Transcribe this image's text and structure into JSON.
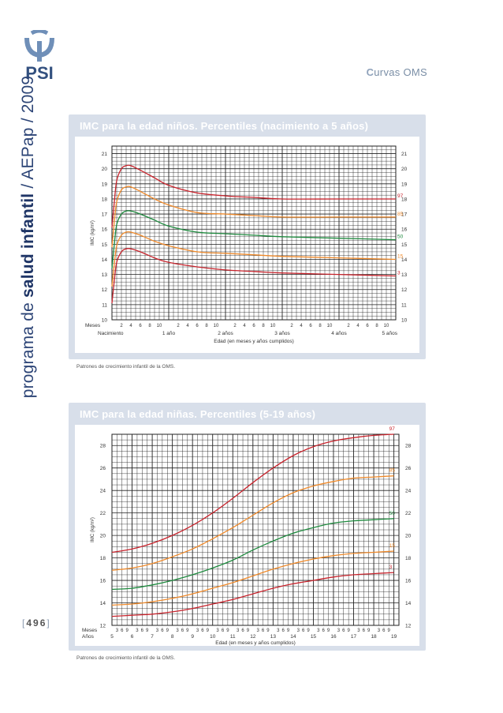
{
  "header": {
    "section_title_first": "C",
    "section_title_rest": "urvas OMS",
    "logo_text": "PSI"
  },
  "brand": {
    "part1": "programa de ",
    "part2": "salud ",
    "part3": "infantil",
    "part4": " / AEPap / 2009"
  },
  "page_number": {
    "open": "[",
    "value": "496",
    "close": "]"
  },
  "colors": {
    "panel_bg": "#d8dfea",
    "p97": "#c8232c",
    "p85": "#f08a2a",
    "p50": "#1e8a3e",
    "p15": "#f08a2a",
    "p3": "#c8232c",
    "grid": "#222222"
  },
  "chart_data": [
    {
      "type": "line",
      "title": "IMC para la edad niños. Percentiles (nacimiento a 5 años)",
      "ylabel": "IMC (kg/m²)",
      "xlabel": "Edad (en meses y años cumplidos)",
      "months_label": "Meses",
      "source": "Patrones de crecimiento infantil de la OMS.",
      "ylim": [
        10,
        21.5
      ],
      "xlim": [
        0,
        60
      ],
      "yticks": [
        "10",
        "11",
        "12",
        "13",
        "14",
        "15",
        "16",
        "17",
        "18",
        "19",
        "20",
        "21"
      ],
      "month_ticks": [
        "2",
        "4",
        "6",
        "8",
        "10",
        "2",
        "4",
        "6",
        "8",
        "10",
        "2",
        "4",
        "6",
        "8",
        "10",
        "2",
        "4",
        "6",
        "8",
        "10",
        "2",
        "4",
        "6",
        "8",
        "10"
      ],
      "year_labels": [
        "Nacimiento",
        "1 año",
        "2 años",
        "3 años",
        "4 años",
        "5 años"
      ],
      "grid": true,
      "series": [
        {
          "name": "97",
          "x": [
            0,
            0.5,
            1,
            2,
            3,
            4,
            6,
            9,
            12,
            18,
            24,
            30,
            36,
            48,
            60
          ],
          "values": [
            16.1,
            17.8,
            19.2,
            20.0,
            20.2,
            20.2,
            19.9,
            19.4,
            18.9,
            18.4,
            18.2,
            18.1,
            18.0,
            18.0,
            18.0
          ]
        },
        {
          "name": "85",
          "x": [
            0,
            0.5,
            1,
            2,
            3,
            4,
            6,
            9,
            12,
            18,
            24,
            30,
            36,
            48,
            60
          ],
          "values": [
            14.8,
            16.5,
            17.8,
            18.6,
            18.8,
            18.8,
            18.5,
            18.0,
            17.6,
            17.1,
            17.0,
            16.9,
            16.8,
            16.8,
            16.8
          ]
        },
        {
          "name": "50",
          "x": [
            0,
            0.5,
            1,
            2,
            3,
            4,
            6,
            9,
            12,
            18,
            24,
            30,
            36,
            48,
            60
          ],
          "values": [
            13.4,
            15.0,
            16.3,
            17.0,
            17.2,
            17.2,
            17.0,
            16.6,
            16.2,
            15.8,
            15.7,
            15.6,
            15.5,
            15.4,
            15.3
          ]
        },
        {
          "name": "15",
          "x": [
            0,
            0.5,
            1,
            2,
            3,
            4,
            6,
            9,
            12,
            18,
            24,
            30,
            36,
            48,
            60
          ],
          "values": [
            12.2,
            13.7,
            14.9,
            15.6,
            15.8,
            15.8,
            15.6,
            15.2,
            14.9,
            14.5,
            14.4,
            14.3,
            14.2,
            14.1,
            14.0
          ]
        },
        {
          "name": "3",
          "x": [
            0,
            0.5,
            1,
            2,
            3,
            4,
            6,
            9,
            12,
            18,
            24,
            30,
            36,
            48,
            60
          ],
          "values": [
            11.1,
            12.6,
            13.8,
            14.5,
            14.7,
            14.7,
            14.5,
            14.1,
            13.8,
            13.5,
            13.3,
            13.2,
            13.1,
            13.0,
            12.9
          ]
        }
      ]
    },
    {
      "type": "line",
      "title": "IMC para la edad niñas. Percentiles (5-19 años)",
      "ylabel": "IMC (kg/m²)",
      "xlabel": "Edad (en meses y años cumplidos)",
      "months_label": "Meses",
      "years_label": "Años",
      "source": "Patrones de crecimiento infantil de la OMS.",
      "ylim": [
        12,
        29
      ],
      "xlim": [
        5,
        19.25
      ],
      "yticks": [
        "12",
        "14",
        "16",
        "18",
        "20",
        "22",
        "24",
        "26",
        "28"
      ],
      "month_tick_pattern": [
        "3",
        "6",
        "9"
      ],
      "year_labels": [
        "5",
        "6",
        "7",
        "8",
        "9",
        "10",
        "11",
        "12",
        "13",
        "14",
        "15",
        "16",
        "17",
        "18",
        "19"
      ],
      "grid": true,
      "series": [
        {
          "name": "97",
          "x": [
            5,
            6,
            7,
            8,
            9,
            10,
            11,
            12,
            13,
            14,
            15,
            16,
            17,
            18,
            19
          ],
          "values": [
            18.5,
            18.8,
            19.3,
            20.0,
            20.9,
            22.0,
            23.3,
            24.7,
            26.0,
            27.1,
            27.9,
            28.4,
            28.7,
            28.9,
            29.0
          ]
        },
        {
          "name": "85",
          "x": [
            5,
            6,
            7,
            8,
            9,
            10,
            11,
            12,
            13,
            14,
            15,
            16,
            17,
            18,
            19
          ],
          "values": [
            16.9,
            17.1,
            17.5,
            18.1,
            18.8,
            19.7,
            20.7,
            21.8,
            22.9,
            23.8,
            24.4,
            24.8,
            25.1,
            25.2,
            25.3
          ]
        },
        {
          "name": "50",
          "x": [
            5,
            6,
            7,
            8,
            9,
            10,
            11,
            12,
            13,
            14,
            15,
            16,
            17,
            18,
            19
          ],
          "values": [
            15.2,
            15.3,
            15.6,
            16.0,
            16.5,
            17.1,
            17.8,
            18.7,
            19.5,
            20.2,
            20.7,
            21.1,
            21.3,
            21.4,
            21.5
          ]
        },
        {
          "name": "15",
          "x": [
            5,
            6,
            7,
            8,
            9,
            10,
            11,
            12,
            13,
            14,
            15,
            16,
            17,
            18,
            19
          ],
          "values": [
            13.8,
            13.9,
            14.1,
            14.4,
            14.8,
            15.3,
            15.8,
            16.4,
            17.0,
            17.5,
            17.9,
            18.2,
            18.4,
            18.5,
            18.6
          ]
        },
        {
          "name": "3",
          "x": [
            5,
            6,
            7,
            8,
            9,
            10,
            11,
            12,
            13,
            14,
            15,
            16,
            17,
            18,
            19
          ],
          "values": [
            12.8,
            12.9,
            13.0,
            13.2,
            13.5,
            13.9,
            14.3,
            14.8,
            15.3,
            15.7,
            16.0,
            16.3,
            16.5,
            16.6,
            16.7
          ]
        }
      ]
    }
  ]
}
